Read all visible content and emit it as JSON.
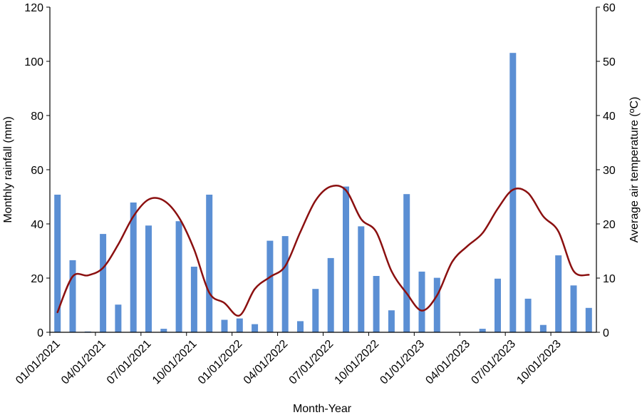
{
  "chart_data": {
    "type": "bar+line",
    "title": "",
    "xlabel": "Month-Year",
    "ylabel": "Monthly rainfall (mm)",
    "y2label": "Average air temperature (ºC)",
    "ylim": [
      0,
      120
    ],
    "y2lim": [
      0,
      60
    ],
    "yticks": [
      "0",
      "20",
      "40",
      "60",
      "80",
      "100",
      "120"
    ],
    "y2ticks": [
      "0",
      "10",
      "20",
      "30",
      "40",
      "50",
      "60"
    ],
    "xtick_labels": [
      "01/01/2021",
      "04/01/2021",
      "07/01/2021",
      "10/01/2021",
      "01/01/2022",
      "04/01/2022",
      "07/01/2022",
      "10/01/2022",
      "01/01/2023",
      "04/01/2023",
      "07/01/2023",
      "10/01/2023"
    ],
    "months": 36,
    "grid": false,
    "colors": {
      "bar": "#5b8fd4",
      "line": "#8b1010",
      "axis": "#000000"
    },
    "series": [
      {
        "name": "Monthly rainfall (mm)",
        "type": "bar",
        "axis": "left",
        "values": [
          50.8,
          26.6,
          0.3,
          36.3,
          10.2,
          47.9,
          39.4,
          1.3,
          41.0,
          24.2,
          50.8,
          4.6,
          5.1,
          3.0,
          33.8,
          35.5,
          4.1,
          16.0,
          27.4,
          53.8,
          39.1,
          20.8,
          8.1,
          51.0,
          22.4,
          20.1,
          0,
          0,
          1.3,
          19.8,
          103.1,
          12.4,
          2.7,
          28.4,
          17.3,
          9.0
        ]
      },
      {
        "name": "Average air temperature (ºC)",
        "type": "line",
        "axis": "right",
        "values": [
          3.7,
          10.3,
          10.5,
          11.9,
          16.2,
          21.4,
          24.5,
          24.3,
          21.2,
          15.3,
          7.3,
          5.4,
          3.1,
          8.0,
          10.2,
          12.2,
          18.5,
          24.3,
          26.9,
          26.2,
          20.9,
          18.5,
          11.3,
          7.2,
          4.0,
          6.8,
          13.0,
          15.9,
          18.3,
          22.8,
          26.3,
          25.7,
          21.4,
          18.6,
          11.3,
          10.6
        ]
      }
    ]
  }
}
